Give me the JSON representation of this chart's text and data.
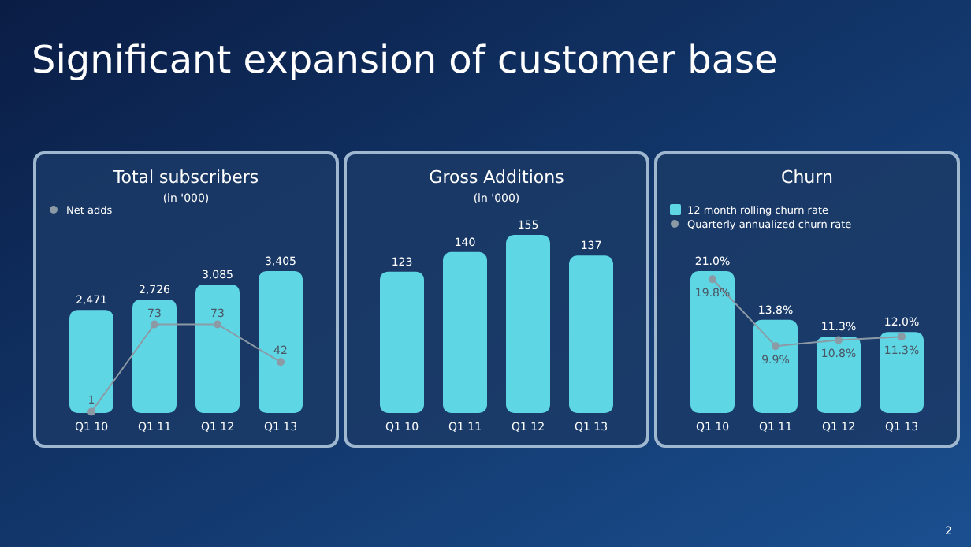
{
  "chart_data": [
    {
      "type": "other",
      "title": "Significant expansion of customer base",
      "annotations": [
        "2"
      ]
    },
    {
      "type": "bar",
      "title": "Total subscribers",
      "subtitle": "(in '000)",
      "categories": [
        "Q1 10",
        "Q1 11",
        "Q1 12",
        "Q1 13"
      ],
      "legend": "top left",
      "series": [
        {
          "type": "bar",
          "color": "#5fd6e4",
          "values": [
            2471,
            2726,
            3085,
            3405
          ],
          "value_labels": [
            "2,471",
            "2,726",
            "3,085",
            "3,405"
          ]
        },
        {
          "type": "line",
          "name": "Net adds",
          "color": "#8c9aa6",
          "axis": "y2",
          "marker": "circle",
          "values": [
            1,
            73,
            73,
            42
          ],
          "value_labels": [
            "1",
            "73",
            "73",
            "42"
          ]
        }
      ]
    },
    {
      "type": "bar",
      "title": "Gross Additions",
      "subtitle": "(in '000)",
      "categories": [
        "Q1 10",
        "Q1 11",
        "Q1 12",
        "Q1 13"
      ],
      "series": [
        {
          "type": "bar",
          "color": "#5fd6e4",
          "values": [
            123,
            140,
            155,
            137
          ],
          "value_labels": [
            "123",
            "140",
            "155",
            "137"
          ]
        }
      ]
    },
    {
      "type": "bar",
      "title": "Churn",
      "categories": [
        "Q1 10",
        "Q1 11",
        "Q1 12",
        "Q1 13"
      ],
      "legend": "top left",
      "series": [
        {
          "type": "bar",
          "name": "12 month rolling churn rate",
          "color": "#5fd6e4",
          "values": [
            21.0,
            13.8,
            11.3,
            12.0
          ],
          "value_labels": [
            "21.0%",
            "13.8%",
            "11.3%",
            "12.0%"
          ]
        },
        {
          "type": "line",
          "name": "Quarterly annualized churn rate",
          "color": "#8c9aa6",
          "marker": "circle",
          "values": [
            19.8,
            9.9,
            10.8,
            11.3
          ],
          "value_labels": [
            "19.8%",
            "9.9%",
            "10.8%",
            "11.3%"
          ]
        }
      ]
    }
  ]
}
